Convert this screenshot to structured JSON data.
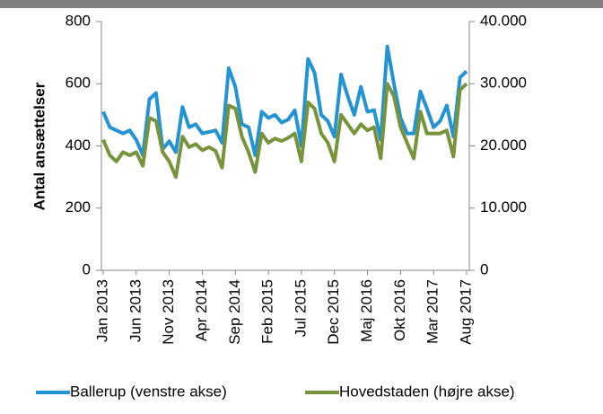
{
  "chart_data": {
    "type": "line",
    "ylabel": "Antal ansættelser",
    "categories": [
      "Jan 2013",
      null,
      null,
      null,
      null,
      "Jun 2013",
      null,
      null,
      null,
      null,
      "Nov 2013",
      null,
      null,
      null,
      null,
      "Apr 2014",
      null,
      null,
      null,
      null,
      "Sep 2014",
      null,
      null,
      null,
      null,
      "Feb 2015",
      null,
      null,
      null,
      null,
      "Jul 2015",
      null,
      null,
      null,
      null,
      "Dec 2015",
      null,
      null,
      null,
      null,
      "Maj 2016",
      null,
      null,
      null,
      null,
      "Okt 2016",
      null,
      null,
      null,
      null,
      "Mar 2017",
      null,
      null,
      null,
      null,
      "Aug 2017"
    ],
    "series": [
      {
        "name": "Ballerup (venstre akse)",
        "color": "#2393d2",
        "values": [
          510,
          460,
          450,
          440,
          450,
          420,
          370,
          550,
          570,
          390,
          415,
          380,
          525,
          460,
          470,
          440,
          445,
          450,
          410,
          650,
          590,
          470,
          460,
          370,
          510,
          490,
          500,
          475,
          485,
          515,
          400,
          680,
          635,
          500,
          480,
          430,
          630,
          560,
          500,
          590,
          510,
          515,
          420,
          720,
          600,
          490,
          440,
          440,
          575,
          520,
          460,
          480,
          530,
          430,
          620,
          640
        ]
      },
      {
        "name": "Hovedstaden (højre akse)",
        "color": "#77933c",
        "axis": "y2",
        "values": [
          21000,
          18500,
          17500,
          19000,
          18500,
          19000,
          16800,
          24500,
          24000,
          19000,
          17500,
          15000,
          21500,
          19800,
          20300,
          19300,
          19800,
          19200,
          16500,
          26500,
          26000,
          21500,
          19000,
          15800,
          22000,
          20500,
          21200,
          20800,
          21300,
          22000,
          17500,
          27000,
          26000,
          22000,
          20500,
          17500,
          25000,
          23500,
          22000,
          23500,
          22500,
          23000,
          18000,
          30000,
          28000,
          23000,
          20500,
          18000,
          25500,
          22000,
          22000,
          22000,
          22500,
          18300,
          29000,
          30000
        ]
      }
    ],
    "ylim": [
      0,
      800
    ],
    "yticks": [
      0,
      200,
      400,
      600,
      800
    ],
    "y2lim": [
      0,
      40000
    ],
    "y2ticks": [
      0,
      {
        "value": 10000,
        "label": "10.000"
      },
      {
        "value": 20000,
        "label": "20.000"
      },
      {
        "value": 30000,
        "label": "30.000"
      },
      {
        "value": 40000,
        "label": "40.000"
      }
    ],
    "grid": false,
    "legend": "bottom"
  }
}
